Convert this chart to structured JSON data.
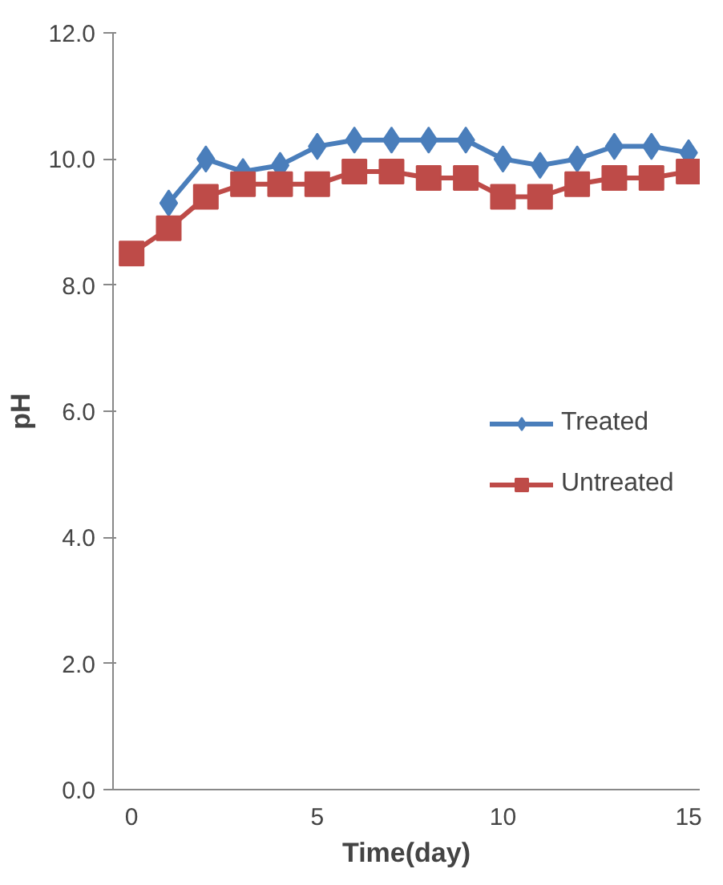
{
  "chart_data": {
    "type": "line",
    "xlabel": "Time(day)",
    "ylabel": "pH",
    "x": [
      0,
      1,
      2,
      3,
      4,
      5,
      6,
      7,
      8,
      9,
      10,
      11,
      12,
      13,
      14,
      15
    ],
    "series": [
      {
        "name": "Treated",
        "color": "#4a7ebb",
        "marker": "diamond",
        "values": [
          null,
          9.3,
          10.0,
          9.8,
          9.9,
          10.2,
          10.3,
          10.3,
          10.3,
          10.3,
          10.0,
          9.9,
          10.0,
          10.2,
          10.2,
          10.1
        ]
      },
      {
        "name": "Untreated",
        "color": "#be4b48",
        "marker": "square",
        "values": [
          8.5,
          8.9,
          9.4,
          9.6,
          9.6,
          9.6,
          9.8,
          9.8,
          9.7,
          9.7,
          9.4,
          9.4,
          9.6,
          9.7,
          9.7,
          9.8
        ]
      }
    ],
    "xlim": [
      -0.5,
      15.3
    ],
    "xticks": [
      0,
      5,
      10,
      15
    ],
    "ylim": [
      0,
      12
    ],
    "yticks": [
      {
        "value": 0,
        "label": "0.0"
      },
      {
        "value": 2,
        "label": "2.0"
      },
      {
        "value": 4,
        "label": "4.0"
      },
      {
        "value": 6,
        "label": "6.0"
      },
      {
        "value": 8,
        "label": "8.0"
      },
      {
        "value": 10,
        "label": "10.0"
      },
      {
        "value": 12,
        "label": "12.0"
      }
    ],
    "grid": false,
    "legend": "right",
    "line_style": "solid"
  }
}
